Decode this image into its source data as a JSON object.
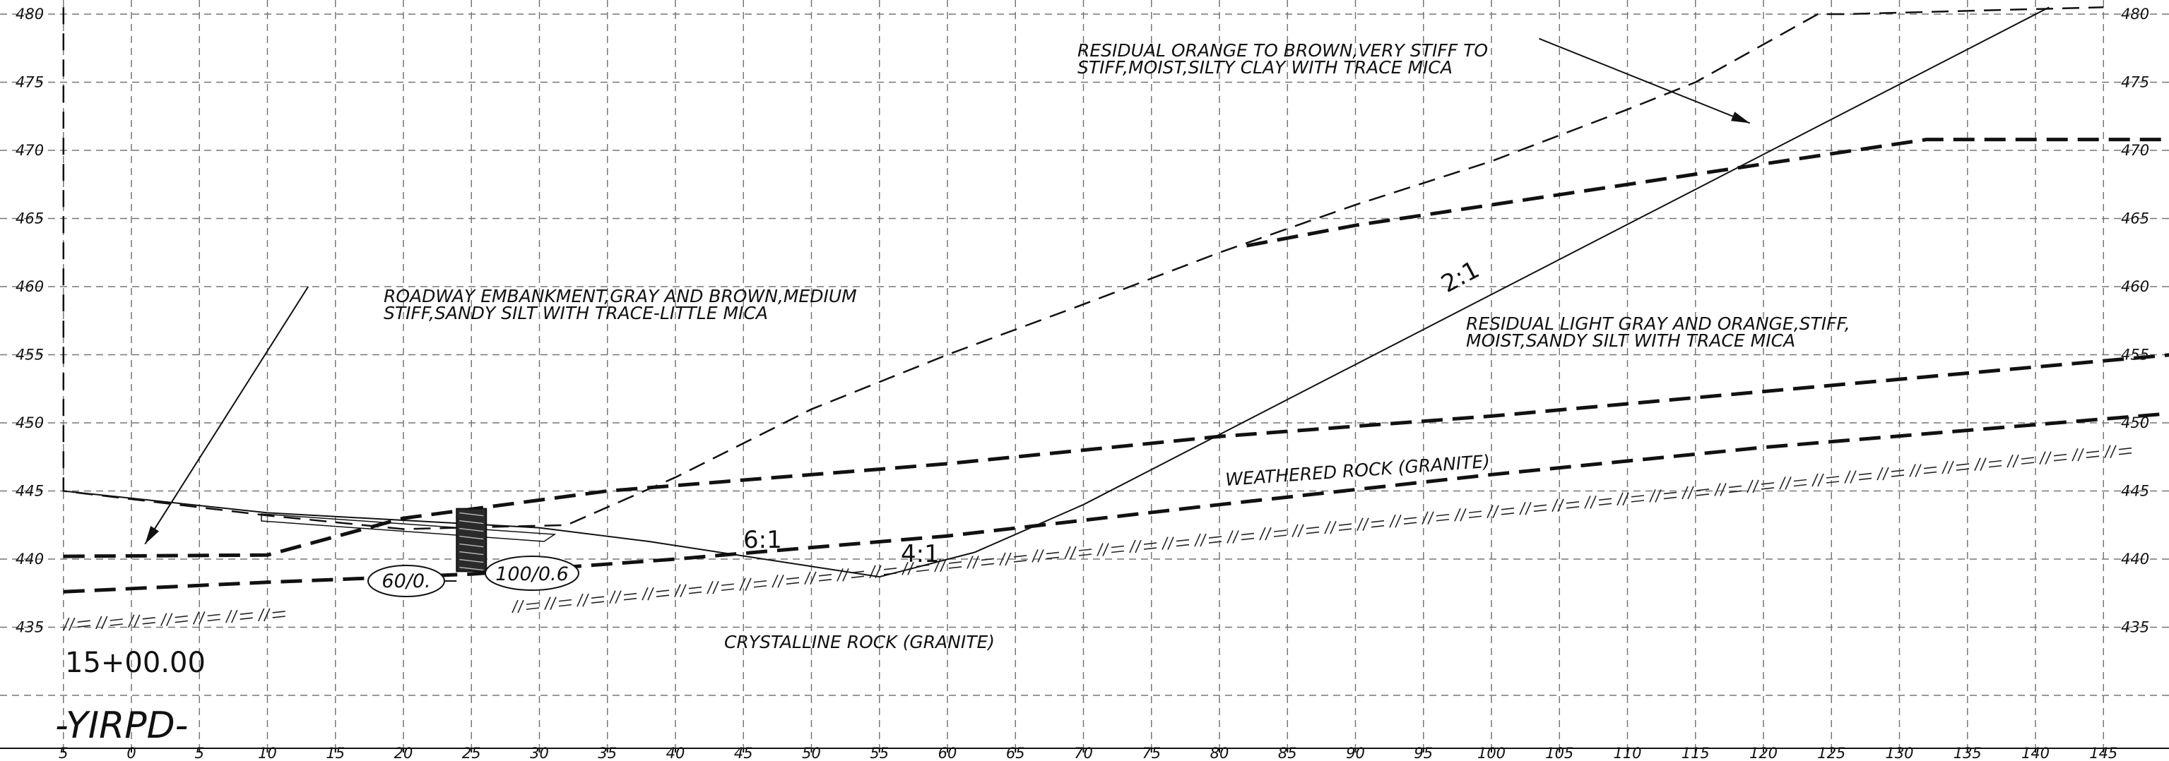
{
  "drawing": {
    "station": "15+00.00",
    "alignment": "-YIRPD-"
  },
  "axes": {
    "x_ticks": [
      "5",
      "0",
      "5",
      "10",
      "15",
      "20",
      "25",
      "30",
      "35",
      "40",
      "45",
      "50",
      "55",
      "60",
      "65",
      "70",
      "75",
      "80",
      "85",
      "90",
      "95",
      "100",
      "105",
      "110",
      "115",
      "120",
      "125",
      "130",
      "135",
      "140",
      "145"
    ],
    "x_values": [
      -5,
      0,
      5,
      10,
      15,
      20,
      25,
      30,
      35,
      40,
      45,
      50,
      55,
      60,
      65,
      70,
      75,
      80,
      85,
      90,
      95,
      100,
      105,
      110,
      115,
      120,
      125,
      130,
      135,
      140,
      145
    ],
    "y_ticks": [
      480,
      475,
      470,
      465,
      460,
      455,
      450,
      445,
      440,
      435
    ],
    "elev_range": [
      430,
      481
    ],
    "offset_range": [
      -5,
      150
    ]
  },
  "annotations": {
    "residual_orange_l1": "RESIDUAL ORANGE TO BROWN,VERY STIFF TO",
    "residual_orange_l2": "STIFF,MOIST,SILTY CLAY WITH TRACE MICA",
    "embankment_l1": "ROADWAY EMBANKMENT,GRAY AND BROWN,MEDIUM",
    "embankment_l2": "STIFF,SANDY SILT WITH TRACE-LITTLE MICA",
    "residual_gray_l1": "RESIDUAL LIGHT GRAY AND ORANGE,STIFF,",
    "residual_gray_l2": "MOIST,SANDY SILT WITH TRACE MICA",
    "weathered": "WEATHERED ROCK (GRANITE)",
    "crystalline": "CRYSTALLINE ROCK (GRANITE)",
    "slope_2_1": "2:1",
    "slope_6_1": "6:1",
    "slope_4_1": "4:1",
    "boring_left": "60/0.",
    "boring_right": "100/0.6"
  },
  "profiles": {
    "existing_ground": [
      [
        -5,
        480.5
      ],
      [
        -5,
        445
      ],
      [
        10,
        443.2
      ],
      [
        20,
        442.2
      ],
      [
        32,
        442.5
      ],
      [
        40,
        446
      ],
      [
        50,
        451
      ],
      [
        60,
        455
      ],
      [
        70,
        458.7
      ],
      [
        80,
        462.5
      ],
      [
        90,
        466
      ],
      [
        100,
        469.2
      ],
      [
        110,
        473
      ],
      [
        115,
        475
      ],
      [
        124,
        480
      ],
      [
        126,
        480
      ],
      [
        145,
        480.5
      ]
    ],
    "residual_gray_top": [
      [
        82,
        463
      ],
      [
        90,
        464.5
      ],
      [
        100,
        466
      ],
      [
        110,
        467.5
      ],
      [
        120,
        469
      ],
      [
        132,
        470.8
      ],
      [
        150,
        470.8
      ]
    ],
    "weathered_top": [
      [
        -5,
        440.2
      ],
      [
        10,
        440.3
      ],
      [
        20,
        443
      ],
      [
        35,
        445
      ],
      [
        60,
        447
      ],
      [
        80,
        449
      ],
      [
        100,
        450.5
      ],
      [
        120,
        452.3
      ],
      [
        150,
        455
      ]
    ],
    "crystalline_top": [
      [
        -5,
        437.6
      ],
      [
        10,
        438.3
      ],
      [
        25,
        438.9
      ],
      [
        40,
        440
      ],
      [
        60,
        441.7
      ],
      [
        80,
        444
      ],
      [
        100,
        446.2
      ],
      [
        120,
        448.2
      ],
      [
        150,
        450.7
      ]
    ],
    "proposed": [
      [
        -5,
        445
      ],
      [
        10,
        443.4
      ],
      [
        30,
        442.3
      ],
      [
        38,
        441.3
      ],
      [
        55,
        438.7
      ],
      [
        62,
        440.5
      ],
      [
        70,
        444
      ],
      [
        141,
        480.5
      ]
    ]
  },
  "arrows": {
    "orange_leader_from": [
      103.5,
      478.2
    ],
    "orange_leader_to": [
      119,
      472
    ],
    "embank_leader_from": [
      13,
      460
    ],
    "embank_leader_to": [
      1,
      441.1
    ]
  },
  "boring": {
    "offset": 25,
    "elev_top": 443.7,
    "elev_bottom": 439.1
  }
}
